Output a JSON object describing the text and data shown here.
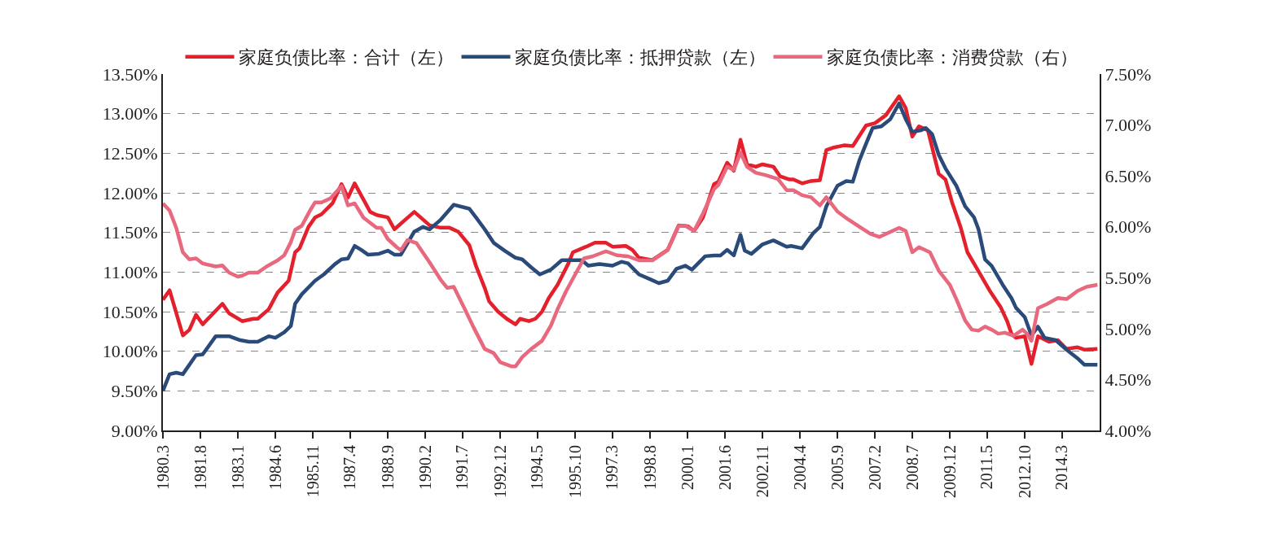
{
  "chart_data": {
    "type": "line",
    "xlim": [
      "1980-03",
      "2015-08"
    ],
    "xticks": [
      {
        "value": "1980-03",
        "label": "1980.3"
      },
      {
        "value": "1981-08",
        "label": "1981.8"
      },
      {
        "value": "1983-01",
        "label": "1983.1"
      },
      {
        "value": "1984-06",
        "label": "1984.6"
      },
      {
        "value": "1985-11",
        "label": "1985.11"
      },
      {
        "value": "1987-04",
        "label": "1987.4"
      },
      {
        "value": "1988-09",
        "label": "1988.9"
      },
      {
        "value": "1990-02",
        "label": "1990.2"
      },
      {
        "value": "1991-07",
        "label": "1991.7"
      },
      {
        "value": "1992-12",
        "label": "1992.12"
      },
      {
        "value": "1994-05",
        "label": "1994.5"
      },
      {
        "value": "1995-10",
        "label": "1995.10"
      },
      {
        "value": "1997-03",
        "label": "1997.3"
      },
      {
        "value": "1998-08",
        "label": "1998.8"
      },
      {
        "value": "2000-01",
        "label": "2000.1"
      },
      {
        "value": "2001-06",
        "label": "2001.6"
      },
      {
        "value": "2002-11",
        "label": "2002.11"
      },
      {
        "value": "2004-04",
        "label": "2004.4"
      },
      {
        "value": "2005-09",
        "label": "2005.9"
      },
      {
        "value": "2007-02",
        "label": "2007.2"
      },
      {
        "value": "2008-07",
        "label": "2008.7"
      },
      {
        "value": "2009-12",
        "label": "2009.12"
      },
      {
        "value": "2011-05",
        "label": "2011.5"
      },
      {
        "value": "2012-10",
        "label": "2012.10"
      },
      {
        "value": "2014-03",
        "label": "2014.3"
      }
    ],
    "ylim": [
      9.0,
      13.5
    ],
    "yticks": [
      {
        "value": 9.0,
        "label": "9.00%"
      },
      {
        "value": 9.5,
        "label": "9.50%"
      },
      {
        "value": 10.0,
        "label": "10.00%"
      },
      {
        "value": 10.5,
        "label": "10.50%"
      },
      {
        "value": 11.0,
        "label": "11.00%"
      },
      {
        "value": 11.5,
        "label": "11.50%"
      },
      {
        "value": 12.0,
        "label": "12.00%"
      },
      {
        "value": 12.5,
        "label": "12.50%"
      },
      {
        "value": 13.0,
        "label": "13.00%"
      },
      {
        "value": 13.5,
        "label": "13.50%"
      }
    ],
    "y2lim": [
      4.0,
      7.5
    ],
    "y2ticks": [
      {
        "value": 4.0,
        "label": "4.00%"
      },
      {
        "value": 4.5,
        "label": "4.50%"
      },
      {
        "value": 5.0,
        "label": "5.00%"
      },
      {
        "value": 5.5,
        "label": "5.50%"
      },
      {
        "value": 6.0,
        "label": "6.00%"
      },
      {
        "value": 6.5,
        "label": "6.50%"
      },
      {
        "value": 7.0,
        "label": "7.00%"
      },
      {
        "value": 7.5,
        "label": "7.50%"
      }
    ],
    "grid": "y",
    "legend": "top",
    "marker": "none",
    "line_style": "solid",
    "series": [
      {
        "name": "家庭负债比率：合计（左）",
        "color": "#e3202c",
        "x": [
          "1980-03",
          "1980-06",
          "1980-12",
          "1981-03",
          "1981-06",
          "1981-09",
          "1982-06",
          "1982-09",
          "1983-03",
          "1983-08",
          "1983-10",
          "1984-03",
          "1984-07",
          "1984-12",
          "1985-03",
          "1985-05",
          "1985-09",
          "1985-12",
          "1986-03",
          "1986-08",
          "1986-12",
          "1987-03",
          "1987-06",
          "1988-01",
          "1988-04",
          "1988-09",
          "1988-12",
          "1989-09",
          "1990-04",
          "1990-09",
          "1991-01",
          "1991-05",
          "1991-10",
          "1992-01",
          "1992-05",
          "1992-07",
          "1992-11",
          "1993-03",
          "1993-07",
          "1993-09",
          "1994-01",
          "1994-04",
          "1994-07",
          "1994-10",
          "1995-02",
          "1995-07",
          "1995-09",
          "1996-03",
          "1996-07",
          "1996-12",
          "1997-03",
          "1997-09",
          "1997-12",
          "1998-03",
          "1998-09",
          "1999-04",
          "1999-09",
          "2000-01",
          "2000-04",
          "2000-08",
          "2001-01",
          "2001-03",
          "2001-07",
          "2001-10",
          "2002-01",
          "2002-04",
          "2002-08",
          "2002-11",
          "2003-04",
          "2003-07",
          "2003-11",
          "2004-01",
          "2004-05",
          "2004-09",
          "2005-01",
          "2005-04",
          "2005-07",
          "2005-12",
          "2006-04",
          "2006-10",
          "2007-02",
          "2007-07",
          "2008-01",
          "2008-04",
          "2008-07",
          "2008-10",
          "2009-02",
          "2009-07",
          "2009-10",
          "2010-01",
          "2010-05",
          "2010-08",
          "2011-01",
          "2011-06",
          "2011-11",
          "2012-02",
          "2012-04",
          "2012-06",
          "2012-10",
          "2013-01",
          "2013-04",
          "2013-09",
          "2014-01",
          "2014-05",
          "2014-10",
          "2015-01",
          "2015-07"
        ],
        "values": [
          10.65,
          10.77,
          10.2,
          10.27,
          10.46,
          10.34,
          10.6,
          10.48,
          10.38,
          10.41,
          10.41,
          10.53,
          10.74,
          10.89,
          11.25,
          11.3,
          11.57,
          11.69,
          11.73,
          11.87,
          12.11,
          11.94,
          12.12,
          11.76,
          11.72,
          11.69,
          11.54,
          11.76,
          11.59,
          11.56,
          11.56,
          11.51,
          11.34,
          11.08,
          10.8,
          10.63,
          10.5,
          10.41,
          10.34,
          10.41,
          10.38,
          10.41,
          10.5,
          10.67,
          10.84,
          11.11,
          11.25,
          11.32,
          11.37,
          11.37,
          11.32,
          11.33,
          11.28,
          11.18,
          11.15,
          11.28,
          11.59,
          11.58,
          11.52,
          11.69,
          12.11,
          12.14,
          12.38,
          12.28,
          12.67,
          12.36,
          12.33,
          12.36,
          12.33,
          12.21,
          12.17,
          12.17,
          12.12,
          12.15,
          12.16,
          12.54,
          12.57,
          12.6,
          12.59,
          12.85,
          12.88,
          12.98,
          13.22,
          13.07,
          12.71,
          12.84,
          12.79,
          12.24,
          12.17,
          11.88,
          11.56,
          11.25,
          11.01,
          10.77,
          10.56,
          10.38,
          10.22,
          10.17,
          10.19,
          9.84,
          10.19,
          10.12,
          10.14,
          10.03,
          10.05,
          10.02,
          10.03
        ]
      },
      {
        "name": "家庭负债比率：抵押贷款（左）",
        "color": "#2a4a7a",
        "x": [
          "1980-03",
          "1980-06",
          "1980-09",
          "1980-12",
          "1981-06",
          "1981-09",
          "1982-03",
          "1982-09",
          "1983-02",
          "1983-06",
          "1983-10",
          "1984-03",
          "1984-06",
          "1984-10",
          "1985-01",
          "1985-03",
          "1985-06",
          "1985-12",
          "1986-04",
          "1986-09",
          "1986-12",
          "1987-03",
          "1987-06",
          "1987-09",
          "1987-12",
          "1988-05",
          "1988-09",
          "1988-12",
          "1989-03",
          "1989-09",
          "1990-01",
          "1990-04",
          "1990-09",
          "1991-03",
          "1991-10",
          "1992-01",
          "1992-05",
          "1992-09",
          "1993-02",
          "1993-07",
          "1993-10",
          "1994-02",
          "1994-06",
          "1994-11",
          "1995-04",
          "1995-09",
          "1996-01",
          "1996-04",
          "1996-09",
          "1997-03",
          "1997-07",
          "1997-10",
          "1998-03",
          "1998-08",
          "1998-12",
          "1999-04",
          "1999-08",
          "1999-12",
          "2000-03",
          "2000-09",
          "2001-01",
          "2001-04",
          "2001-07",
          "2001-10",
          "2002-01",
          "2002-03",
          "2002-06",
          "2002-11",
          "2003-04",
          "2003-10",
          "2003-12",
          "2004-05",
          "2004-10",
          "2005-01",
          "2005-04",
          "2005-09",
          "2006-01",
          "2006-04",
          "2006-07",
          "2006-10",
          "2007-01",
          "2007-05",
          "2007-09",
          "2008-01",
          "2008-04",
          "2008-07",
          "2008-11",
          "2009-01",
          "2009-04",
          "2009-07",
          "2009-10",
          "2010-03",
          "2010-07",
          "2010-11",
          "2011-01",
          "2011-04",
          "2011-07",
          "2011-12",
          "2012-04",
          "2012-06",
          "2012-10",
          "2013-01",
          "2013-04",
          "2013-07",
          "2013-12",
          "2014-05",
          "2014-10",
          "2015-01",
          "2015-07"
        ],
        "values": [
          9.5,
          9.71,
          9.73,
          9.71,
          9.95,
          9.96,
          10.19,
          10.19,
          10.14,
          10.12,
          10.12,
          10.19,
          10.17,
          10.24,
          10.32,
          10.6,
          10.72,
          10.89,
          10.97,
          11.1,
          11.16,
          11.17,
          11.33,
          11.28,
          11.22,
          11.23,
          11.27,
          11.22,
          11.22,
          11.51,
          11.57,
          11.54,
          11.66,
          11.85,
          11.8,
          11.69,
          11.54,
          11.37,
          11.27,
          11.18,
          11.16,
          11.06,
          10.97,
          11.03,
          11.15,
          11.15,
          11.15,
          11.08,
          11.1,
          11.08,
          11.13,
          11.11,
          10.97,
          10.91,
          10.86,
          10.89,
          11.04,
          11.08,
          11.03,
          11.2,
          11.21,
          11.21,
          11.28,
          11.21,
          11.47,
          11.27,
          11.23,
          11.35,
          11.4,
          11.32,
          11.33,
          11.3,
          11.49,
          11.57,
          11.83,
          12.09,
          12.15,
          12.14,
          12.41,
          12.62,
          12.82,
          12.84,
          12.93,
          13.13,
          12.93,
          12.77,
          12.79,
          12.82,
          12.74,
          12.48,
          12.31,
          12.09,
          11.83,
          11.69,
          11.54,
          11.16,
          11.08,
          10.84,
          10.67,
          10.55,
          10.43,
          10.2,
          10.31,
          10.17,
          10.14,
          10.02,
          9.91,
          9.83,
          9.83
        ]
      },
      {
        "name": "家庭负债比率：消费贷款（右）",
        "color": "#e8687e",
        "axis": "y2",
        "x": [
          "1980-03",
          "1980-06",
          "1980-09",
          "1980-12",
          "1981-03",
          "1981-06",
          "1981-09",
          "1982-03",
          "1982-06",
          "1982-09",
          "1983-01",
          "1983-03",
          "1983-06",
          "1983-10",
          "1984-02",
          "1984-07",
          "1984-10",
          "1985-01",
          "1985-03",
          "1985-06",
          "1985-10",
          "1985-12",
          "1986-03",
          "1986-07",
          "1986-12",
          "1987-03",
          "1987-06",
          "1987-10",
          "1988-04",
          "1988-06",
          "1988-09",
          "1989-01",
          "1989-03",
          "1989-06",
          "1989-10",
          "1990-04",
          "1990-09",
          "1990-12",
          "1991-03",
          "1991-08",
          "1991-12",
          "1992-05",
          "1992-09",
          "1992-12",
          "1993-05",
          "1993-07",
          "1993-10",
          "1994-02",
          "1994-07",
          "1994-11",
          "1995-02",
          "1995-06",
          "1995-10",
          "1996-02",
          "1996-06",
          "1996-12",
          "1997-05",
          "1997-10",
          "1998-03",
          "1998-09",
          "1999-04",
          "1999-09",
          "1999-12",
          "2000-04",
          "2000-08",
          "2001-01",
          "2001-03",
          "2001-07",
          "2001-10",
          "2002-01",
          "2002-04",
          "2002-08",
          "2002-12",
          "2003-06",
          "2003-10",
          "2004-01",
          "2004-05",
          "2004-09",
          "2005-01",
          "2005-04",
          "2005-09",
          "2006-02",
          "2006-07",
          "2006-12",
          "2007-04",
          "2007-09",
          "2008-01",
          "2008-04",
          "2008-07",
          "2008-10",
          "2009-03",
          "2009-07",
          "2009-12",
          "2010-03",
          "2010-07",
          "2010-10",
          "2011-01",
          "2011-04",
          "2011-07",
          "2011-10",
          "2012-01",
          "2012-05",
          "2012-09",
          "2012-11",
          "2013-01",
          "2013-04",
          "2013-08",
          "2014-01",
          "2014-05",
          "2014-10",
          "2015-02",
          "2015-07"
        ],
        "values": [
          6.23,
          6.16,
          5.99,
          5.75,
          5.68,
          5.69,
          5.64,
          5.61,
          5.62,
          5.55,
          5.51,
          5.52,
          5.55,
          5.55,
          5.61,
          5.67,
          5.72,
          5.85,
          5.97,
          6.01,
          6.17,
          6.24,
          6.24,
          6.28,
          6.4,
          6.21,
          6.23,
          6.09,
          5.99,
          5.99,
          5.88,
          5.8,
          5.77,
          5.87,
          5.84,
          5.65,
          5.48,
          5.4,
          5.41,
          5.19,
          5.01,
          4.8,
          4.76,
          4.67,
          4.63,
          4.63,
          4.72,
          4.8,
          4.88,
          5.03,
          5.19,
          5.37,
          5.53,
          5.69,
          5.71,
          5.76,
          5.72,
          5.71,
          5.67,
          5.67,
          5.77,
          6.01,
          6.01,
          5.96,
          6.13,
          6.37,
          6.41,
          6.59,
          6.56,
          6.73,
          6.59,
          6.53,
          6.51,
          6.47,
          6.36,
          6.36,
          6.31,
          6.29,
          6.21,
          6.29,
          6.15,
          6.07,
          6.0,
          5.93,
          5.9,
          5.95,
          5.99,
          5.96,
          5.75,
          5.8,
          5.75,
          5.57,
          5.43,
          5.29,
          5.08,
          4.99,
          4.98,
          5.02,
          4.99,
          4.95,
          4.96,
          4.93,
          4.99,
          4.95,
          4.88,
          5.2,
          5.24,
          5.3,
          5.29,
          5.37,
          5.41,
          5.43
        ]
      }
    ]
  }
}
